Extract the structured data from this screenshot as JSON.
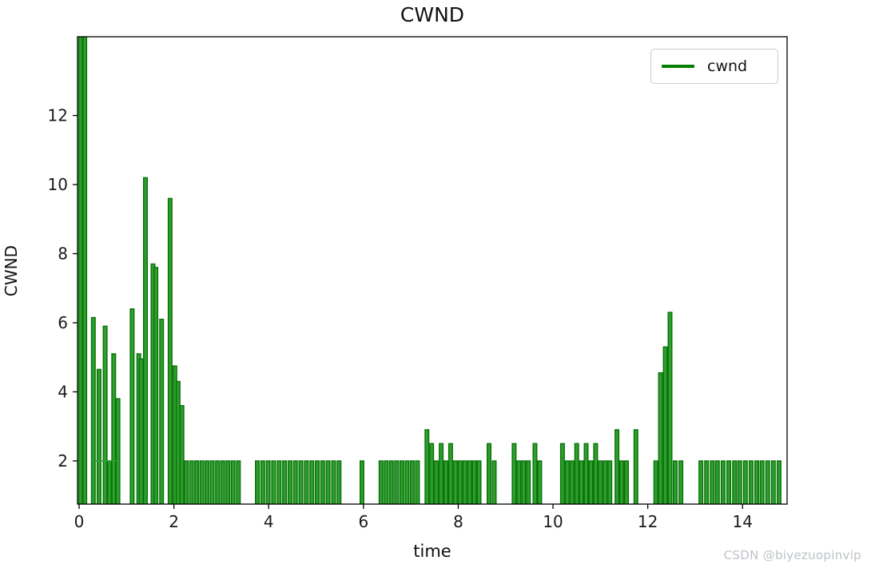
{
  "title": "CWND",
  "watermark": "CSDN @biyezuopinvip",
  "legend": {
    "label": "cwnd"
  },
  "axes": {
    "xlabel": "time",
    "ylabel": "CWND"
  },
  "colors": {
    "bar_fill": "#2f9e2f",
    "bar_edge": "#077307",
    "legend_line": "#008000",
    "spine": "#000000",
    "tick_label": "#1a1a1a",
    "watermark": "#bfc3c7"
  },
  "chart_data": {
    "type": "bar",
    "title": "CWND",
    "xlabel": "time",
    "ylabel": "CWND",
    "legend_label": "cwnd",
    "legend_position": "upper right",
    "grid": false,
    "x_ticks": [
      0,
      2,
      4,
      6,
      8,
      10,
      12,
      14
    ],
    "y_ticks": [
      2,
      4,
      6,
      8,
      10,
      12
    ],
    "xlim": [
      -0.034,
      14.94
    ],
    "ylim": [
      0.75,
      14.28
    ],
    "bar_width": 0.078,
    "baseline": 0.75,
    "connector_segments": [
      {
        "x1": 0.25,
        "x2": 0.85,
        "v": 2.0
      }
    ],
    "points": [
      [
        0.03,
        14.3
      ],
      [
        0.12,
        14.3
      ],
      [
        0.3,
        6.15
      ],
      [
        0.42,
        4.65
      ],
      [
        0.55,
        5.9
      ],
      [
        0.64,
        2.0
      ],
      [
        0.73,
        5.1
      ],
      [
        0.82,
        3.8
      ],
      [
        1.12,
        6.4
      ],
      [
        1.26,
        5.1
      ],
      [
        1.31,
        4.95
      ],
      [
        1.4,
        10.2
      ],
      [
        1.56,
        7.7
      ],
      [
        1.62,
        7.6
      ],
      [
        1.74,
        6.1
      ],
      [
        1.92,
        9.6
      ],
      [
        2.02,
        4.75
      ],
      [
        2.09,
        4.3
      ],
      [
        2.17,
        3.6
      ],
      [
        2.26,
        2.0
      ],
      [
        2.37,
        2.0
      ],
      [
        2.48,
        2.0
      ],
      [
        2.59,
        2.0
      ],
      [
        2.7,
        2.0
      ],
      [
        2.81,
        2.0
      ],
      [
        2.92,
        2.0
      ],
      [
        3.03,
        2.0
      ],
      [
        3.14,
        2.0
      ],
      [
        3.25,
        2.0
      ],
      [
        3.36,
        2.0
      ],
      [
        3.76,
        2.0
      ],
      [
        3.875,
        2.0
      ],
      [
        3.99,
        2.0
      ],
      [
        4.105,
        2.0
      ],
      [
        4.22,
        2.0
      ],
      [
        4.335,
        2.0
      ],
      [
        4.45,
        2.0
      ],
      [
        4.565,
        2.0
      ],
      [
        4.68,
        2.0
      ],
      [
        4.795,
        2.0
      ],
      [
        4.91,
        2.0
      ],
      [
        5.025,
        2.0
      ],
      [
        5.14,
        2.0
      ],
      [
        5.255,
        2.0
      ],
      [
        5.37,
        2.0
      ],
      [
        5.485,
        2.0
      ],
      [
        5.97,
        2.0
      ],
      [
        6.37,
        2.0
      ],
      [
        6.48,
        2.0
      ],
      [
        6.59,
        2.0
      ],
      [
        6.7,
        2.0
      ],
      [
        6.81,
        2.0
      ],
      [
        6.92,
        2.0
      ],
      [
        7.03,
        2.0
      ],
      [
        7.14,
        2.0
      ],
      [
        7.34,
        2.9
      ],
      [
        7.44,
        2.5
      ],
      [
        7.54,
        2.0
      ],
      [
        7.64,
        2.5
      ],
      [
        7.74,
        2.0
      ],
      [
        7.84,
        2.5
      ],
      [
        7.94,
        2.0
      ],
      [
        8.04,
        2.0
      ],
      [
        8.14,
        2.0
      ],
      [
        8.24,
        2.0
      ],
      [
        8.34,
        2.0
      ],
      [
        8.44,
        2.0
      ],
      [
        8.65,
        2.5
      ],
      [
        8.76,
        2.0
      ],
      [
        9.18,
        2.5
      ],
      [
        9.28,
        2.0
      ],
      [
        9.38,
        2.0
      ],
      [
        9.48,
        2.0
      ],
      [
        9.62,
        2.5
      ],
      [
        9.72,
        2.0
      ],
      [
        10.2,
        2.5
      ],
      [
        10.3,
        2.0
      ],
      [
        10.4,
        2.0
      ],
      [
        10.5,
        2.5
      ],
      [
        10.6,
        2.0
      ],
      [
        10.7,
        2.5
      ],
      [
        10.8,
        2.0
      ],
      [
        10.9,
        2.5
      ],
      [
        11.0,
        2.0
      ],
      [
        11.1,
        2.0
      ],
      [
        11.2,
        2.0
      ],
      [
        11.35,
        2.9
      ],
      [
        11.45,
        2.0
      ],
      [
        11.55,
        2.0
      ],
      [
        11.75,
        2.9
      ],
      [
        12.17,
        2.0
      ],
      [
        12.27,
        4.55
      ],
      [
        12.37,
        5.3
      ],
      [
        12.47,
        6.3
      ],
      [
        12.58,
        2.0
      ],
      [
        12.7,
        2.0
      ],
      [
        13.12,
        2.0
      ],
      [
        13.24,
        2.0
      ],
      [
        13.36,
        2.0
      ],
      [
        13.47,
        2.0
      ],
      [
        13.59,
        2.0
      ],
      [
        13.71,
        2.0
      ],
      [
        13.83,
        2.0
      ],
      [
        13.94,
        2.0
      ],
      [
        14.06,
        2.0
      ],
      [
        14.18,
        2.0
      ],
      [
        14.3,
        2.0
      ],
      [
        14.41,
        2.0
      ],
      [
        14.53,
        2.0
      ],
      [
        14.65,
        2.0
      ],
      [
        14.77,
        2.0
      ]
    ]
  }
}
